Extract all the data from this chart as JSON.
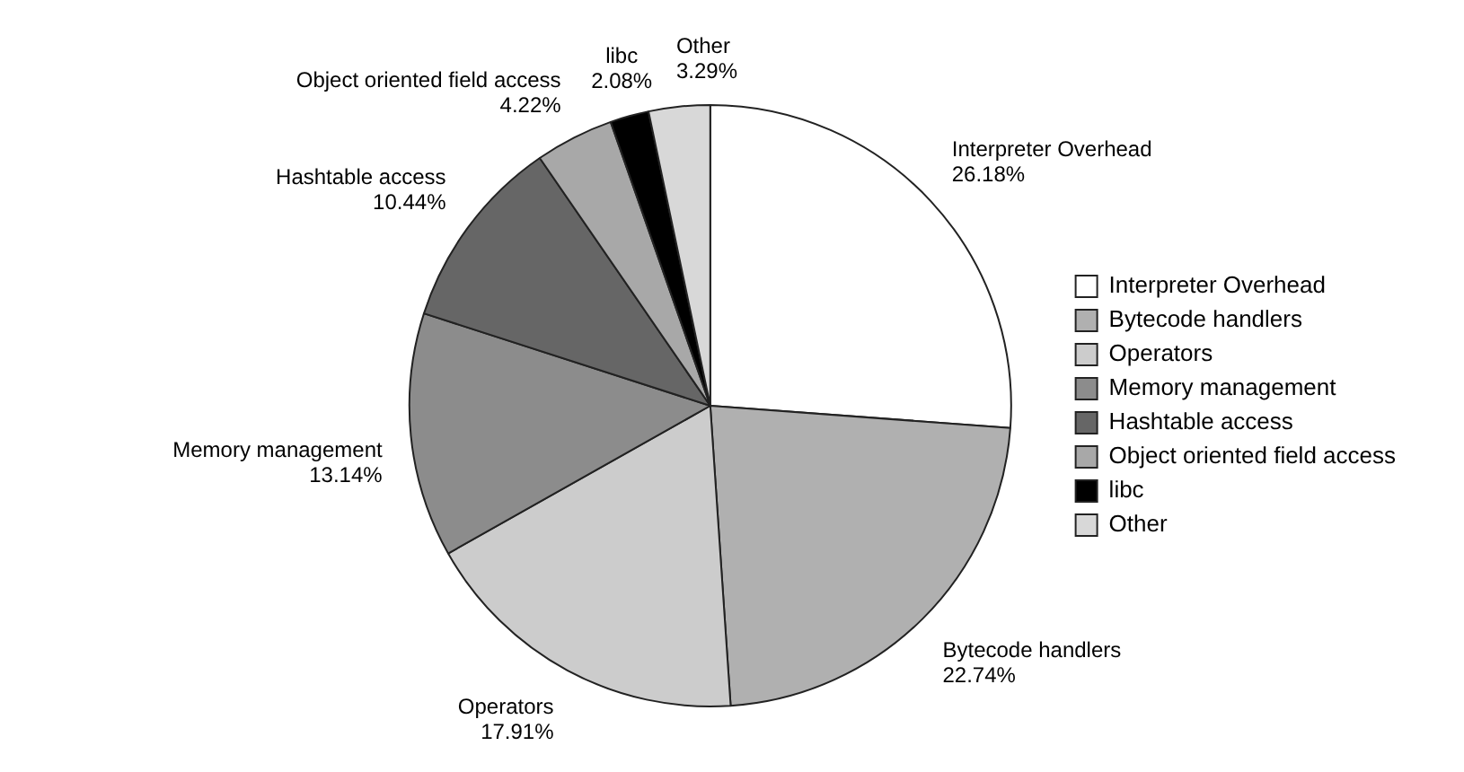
{
  "chart_data": {
    "type": "pie",
    "categories": [
      "Interpreter Overhead",
      "Bytecode handlers",
      "Operators",
      "Memory management",
      "Hashtable access",
      "Object oriented field access",
      "libc",
      "Other"
    ],
    "values": [
      26.18,
      22.74,
      17.91,
      13.14,
      10.44,
      4.22,
      2.08,
      3.29
    ],
    "value_labels": [
      "26.18%",
      "22.74%",
      "17.91%",
      "13.14%",
      "10.44%",
      "4.22%",
      "2.08%",
      "3.29%"
    ],
    "colors": [
      "#ffffff",
      "#b0b0b0",
      "#cccccc",
      "#8c8c8c",
      "#666666",
      "#a8a8a8",
      "#000000",
      "#d8d8d8"
    ],
    "legend": "right"
  }
}
